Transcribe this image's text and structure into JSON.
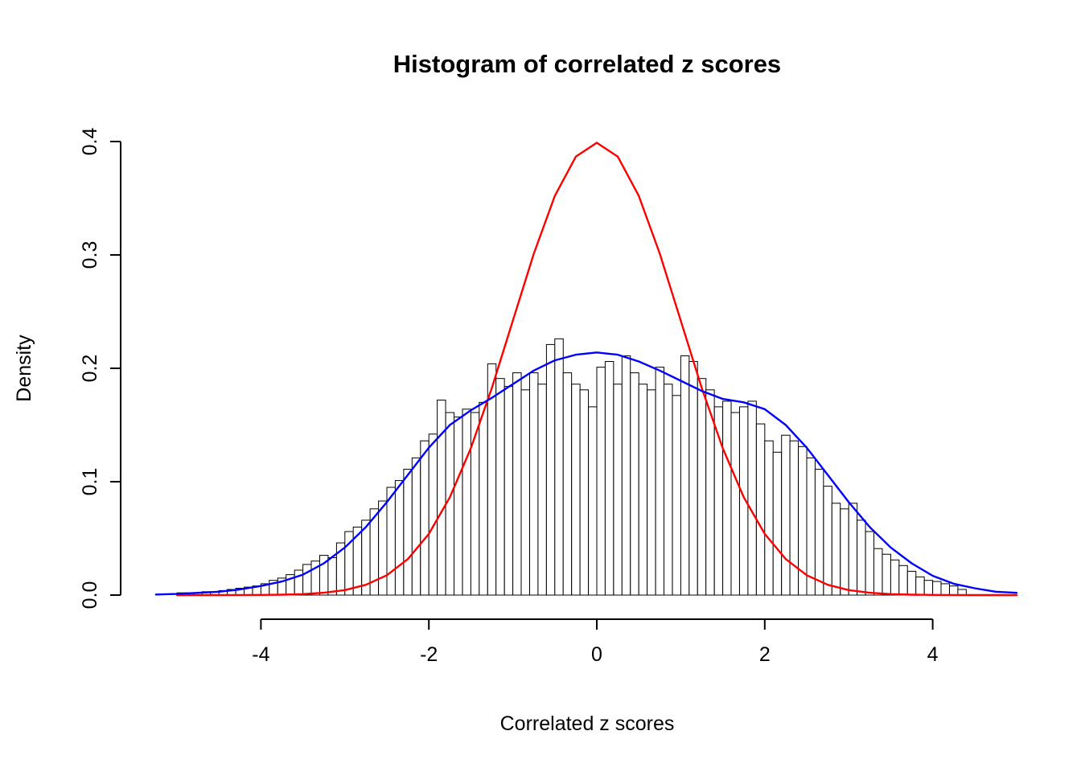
{
  "chart_data": {
    "type": "bar",
    "subtype": "histogram-with-density-overlays",
    "title": "Histogram of correlated z scores",
    "xlabel": "Correlated z scores",
    "ylabel": "Density",
    "xlim": [
      -5.2,
      5.0
    ],
    "ylim": [
      0,
      0.4
    ],
    "x_ticks": [
      -4,
      -2,
      0,
      2,
      4
    ],
    "x_tick_labels": [
      "-4",
      "-2",
      "0",
      "2",
      "4"
    ],
    "y_ticks": [
      0.0,
      0.1,
      0.2,
      0.3,
      0.4
    ],
    "y_tick_labels": [
      "0.0",
      "0.1",
      "0.2",
      "0.3",
      "0.4"
    ],
    "grid": false,
    "legend": "none",
    "bar_fill_color": "#ffffff",
    "bar_border_color": "#000000",
    "bins_start": -5.0,
    "bin_width": 0.1,
    "bar_densities": [
      0.002,
      0.002,
      0.002,
      0.003,
      0.003,
      0.004,
      0.005,
      0.006,
      0.007,
      0.008,
      0.01,
      0.013,
      0.015,
      0.018,
      0.022,
      0.027,
      0.03,
      0.035,
      0.033,
      0.046,
      0.056,
      0.06,
      0.066,
      0.076,
      0.083,
      0.095,
      0.101,
      0.111,
      0.121,
      0.136,
      0.142,
      0.172,
      0.161,
      0.157,
      0.164,
      0.161,
      0.17,
      0.204,
      0.191,
      0.184,
      0.196,
      0.181,
      0.196,
      0.186,
      0.221,
      0.226,
      0.196,
      0.186,
      0.181,
      0.166,
      0.201,
      0.206,
      0.186,
      0.211,
      0.196,
      0.186,
      0.181,
      0.201,
      0.186,
      0.176,
      0.211,
      0.206,
      0.191,
      0.181,
      0.166,
      0.171,
      0.161,
      0.166,
      0.171,
      0.151,
      0.136,
      0.126,
      0.141,
      0.136,
      0.131,
      0.121,
      0.111,
      0.096,
      0.081,
      0.076,
      0.081,
      0.066,
      0.056,
      0.041,
      0.036,
      0.031,
      0.026,
      0.021,
      0.016,
      0.013,
      0.012,
      0.01,
      0.008,
      0.005
    ],
    "curves": [
      {
        "name": "standard-normal-curve",
        "color": "#ff0000",
        "x": [
          -5.0,
          -4.75,
          -4.5,
          -4.25,
          -4.0,
          -3.75,
          -3.5,
          -3.25,
          -3.0,
          -2.75,
          -2.5,
          -2.25,
          -2.0,
          -1.75,
          -1.5,
          -1.25,
          -1.0,
          -0.75,
          -0.5,
          -0.25,
          0.0,
          0.25,
          0.5,
          0.75,
          1.0,
          1.25,
          1.5,
          1.75,
          2.0,
          2.25,
          2.5,
          2.75,
          3.0,
          3.25,
          3.5,
          3.75,
          4.0,
          4.25,
          4.5,
          4.75,
          5.0
        ],
        "y": [
          0.0,
          1e-05,
          2e-05,
          5e-05,
          0.00013,
          0.00035,
          0.00087,
          0.00203,
          0.00443,
          0.00909,
          0.01753,
          0.03174,
          0.05399,
          0.08628,
          0.12952,
          0.18265,
          0.24197,
          0.30114,
          0.35207,
          0.38667,
          0.39894,
          0.38667,
          0.35207,
          0.30114,
          0.24197,
          0.18265,
          0.12952,
          0.08628,
          0.05399,
          0.03174,
          0.01753,
          0.00909,
          0.00443,
          0.00203,
          0.00087,
          0.00035,
          0.00013,
          5e-05,
          2e-05,
          1e-05,
          0.0
        ]
      },
      {
        "name": "kernel-density-curve",
        "color": "#0000ff",
        "x": [
          -5.25,
          -5.0,
          -4.75,
          -4.5,
          -4.25,
          -4.0,
          -3.75,
          -3.5,
          -3.25,
          -3.0,
          -2.75,
          -2.5,
          -2.25,
          -2.0,
          -1.75,
          -1.5,
          -1.25,
          -1.0,
          -0.75,
          -0.5,
          -0.25,
          0.0,
          0.25,
          0.5,
          0.75,
          1.0,
          1.25,
          1.5,
          1.75,
          2.0,
          2.25,
          2.5,
          2.75,
          3.0,
          3.25,
          3.5,
          3.75,
          4.0,
          4.25,
          4.5,
          4.75,
          5.0
        ],
        "y": [
          0.0005,
          0.001,
          0.002,
          0.003,
          0.005,
          0.008,
          0.012,
          0.018,
          0.028,
          0.042,
          0.06,
          0.082,
          0.106,
          0.13,
          0.15,
          0.163,
          0.174,
          0.186,
          0.198,
          0.207,
          0.212,
          0.214,
          0.212,
          0.206,
          0.198,
          0.189,
          0.18,
          0.173,
          0.17,
          0.164,
          0.15,
          0.13,
          0.106,
          0.082,
          0.06,
          0.042,
          0.028,
          0.017,
          0.01,
          0.006,
          0.003,
          0.002
        ]
      }
    ]
  }
}
